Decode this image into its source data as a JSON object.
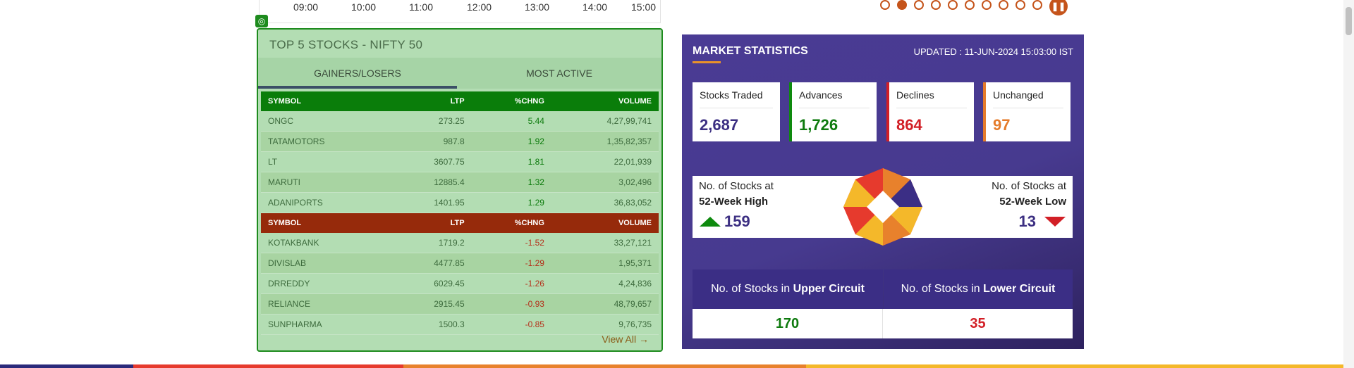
{
  "time_axis": [
    "09:00",
    "10:00",
    "11:00",
    "12:00",
    "13:00",
    "14:00",
    "15:00"
  ],
  "carousel": {
    "active_index": 1,
    "dot_count": 10,
    "pause_icon": "pause-icon"
  },
  "top_stocks": {
    "title": "TOP 5 STOCKS - NIFTY 50",
    "tabs": [
      "GAINERS/LOSERS",
      "MOST ACTIVE"
    ],
    "columns": [
      "SYMBOL",
      "LTP",
      "%CHNG",
      "VOLUME"
    ],
    "gainers": [
      {
        "symbol": "ONGC",
        "ltp": "273.25",
        "chng": "5.44",
        "volume": "4,27,99,741"
      },
      {
        "symbol": "TATAMOTORS",
        "ltp": "987.8",
        "chng": "1.92",
        "volume": "1,35,82,357"
      },
      {
        "symbol": "LT",
        "ltp": "3607.75",
        "chng": "1.81",
        "volume": "22,01,939"
      },
      {
        "symbol": "MARUTI",
        "ltp": "12885.4",
        "chng": "1.32",
        "volume": "3,02,496"
      },
      {
        "symbol": "ADANIPORTS",
        "ltp": "1401.95",
        "chng": "1.29",
        "volume": "36,83,052"
      }
    ],
    "losers": [
      {
        "symbol": "KOTAKBANK",
        "ltp": "1719.2",
        "chng": "-1.52",
        "volume": "33,27,121"
      },
      {
        "symbol": "DIVISLAB",
        "ltp": "4477.85",
        "chng": "-1.29",
        "volume": "1,95,371"
      },
      {
        "symbol": "DRREDDY",
        "ltp": "6029.45",
        "chng": "-1.26",
        "volume": "4,24,836"
      },
      {
        "symbol": "RELIANCE",
        "ltp": "2915.45",
        "chng": "-0.93",
        "volume": "48,79,657"
      },
      {
        "symbol": "SUNPHARMA",
        "ltp": "1500.3",
        "chng": "-0.85",
        "volume": "9,76,735"
      }
    ],
    "view_all": "View All →"
  },
  "market_stats": {
    "title": "MARKET STATISTICS",
    "updated": "UPDATED : 11-JUN-2024 15:03:00 IST",
    "tiles": [
      {
        "label": "Stocks Traded",
        "value": "2,687",
        "color": "#3c2f82",
        "accent": "#ffffff"
      },
      {
        "label": "Advances",
        "value": "1,726",
        "color": "#0e7a0e",
        "accent": "#0e8a0e"
      },
      {
        "label": "Declines",
        "value": "864",
        "color": "#d21f26",
        "accent": "#d21f26"
      },
      {
        "label": "Unchanged",
        "value": "97",
        "color": "#e57b2a",
        "accent": "#e57b2a"
      }
    ],
    "high": {
      "line1": "No. of Stocks at",
      "line2": "52-Week High",
      "value": "159"
    },
    "low": {
      "line1": "No. of Stocks at",
      "line2": "52-Week Low",
      "value": "13"
    },
    "upper_circuit": {
      "prefix": "No. of Stocks in ",
      "bold": "Upper Circuit",
      "value": "170"
    },
    "lower_circuit": {
      "prefix": "No. of Stocks in ",
      "bold": "Lower Circuit",
      "value": "35"
    }
  }
}
